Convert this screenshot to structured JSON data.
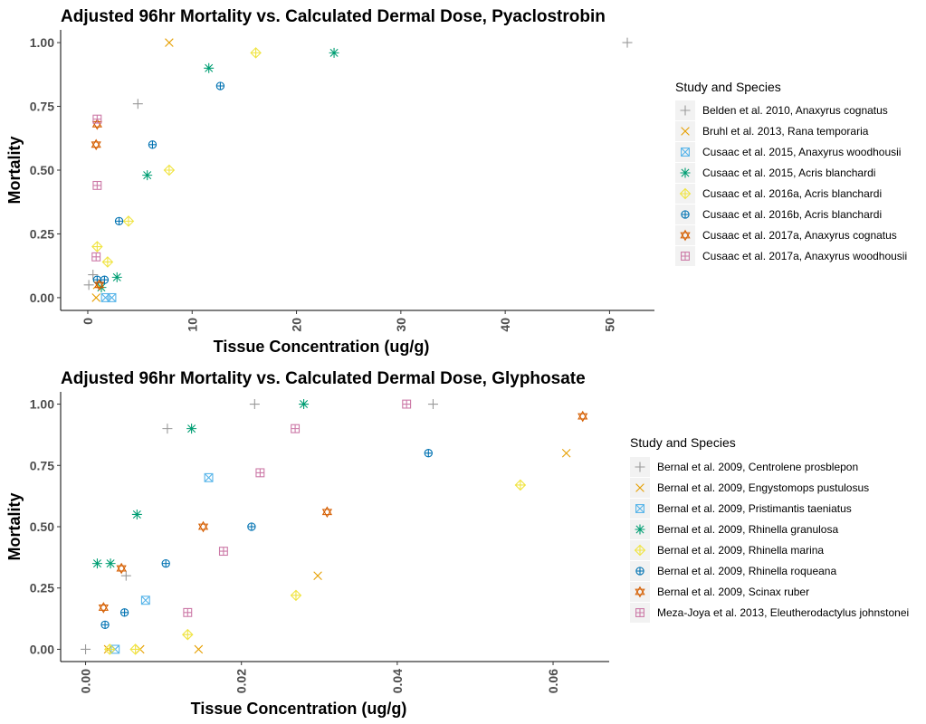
{
  "chart_data": [
    {
      "type": "scatter",
      "title": "Adjusted 96hr Mortality vs. Calculated Dermal Dose, Pyaclostrobin",
      "xlabel": "Tissue Concentration (ug/g)",
      "ylabel": "Mortality",
      "xlim": [
        -2.6,
        54.3
      ],
      "ylim": [
        -0.05,
        1.05
      ],
      "xticks": [
        0,
        10,
        20,
        30,
        40,
        50
      ],
      "xtick_labels": [
        "0",
        "10",
        "20",
        "30",
        "40",
        "50"
      ],
      "yticks": [
        0,
        0.25,
        0.5,
        0.75,
        1.0
      ],
      "ytick_labels": [
        "0.00",
        "0.25",
        "0.50",
        "0.75",
        "1.00"
      ],
      "grid": false,
      "legend": {
        "title": "Study and Species",
        "position": "right"
      },
      "series": [
        {
          "name": "Belden et al. 2010, Anaxyrus cognatus",
          "shape": "plus",
          "color": "#999999",
          "points": [
            [
              0.1,
              0.05
            ],
            [
              0.5,
              0.09
            ],
            [
              4.8,
              0.76
            ],
            [
              51.7,
              1.0
            ]
          ]
        },
        {
          "name": "Bruhl et al. 2013, Rana temporaria",
          "shape": "cross",
          "color": "#E69F00",
          "points": [
            [
              0.8,
              0.0
            ],
            [
              0.9,
              0.05
            ],
            [
              7.8,
              1.0
            ]
          ]
        },
        {
          "name": "Cusaac et al. 2015, Anaxyrus woodhousii",
          "shape": "square-cross",
          "color": "#56B4E9",
          "points": [
            [
              1.7,
              0.0
            ],
            [
              2.3,
              0.0
            ]
          ]
        },
        {
          "name": "Cusaac et al. 2015, Acris blanchardi",
          "shape": "asterisk",
          "color": "#009E73",
          "points": [
            [
              1.3,
              0.04
            ],
            [
              2.8,
              0.08
            ],
            [
              5.7,
              0.48
            ],
            [
              11.6,
              0.9
            ],
            [
              23.6,
              0.96
            ]
          ]
        },
        {
          "name": "Cusaac et al. 2016a, Acris blanchardi",
          "shape": "diamond-plus",
          "color": "#F0E442",
          "points": [
            [
              0.9,
              0.2
            ],
            [
              1.9,
              0.14
            ],
            [
              3.9,
              0.3
            ],
            [
              7.8,
              0.5
            ],
            [
              16.1,
              0.96
            ]
          ]
        },
        {
          "name": "Cusaac et al. 2016b, Acris blanchardi",
          "shape": "circle-plus",
          "color": "#0072B2",
          "points": [
            [
              0.9,
              0.07
            ],
            [
              1.6,
              0.07
            ],
            [
              3.0,
              0.3
            ],
            [
              6.2,
              0.6
            ],
            [
              12.7,
              0.83
            ]
          ]
        },
        {
          "name": "Cusaac et al. 2017a, Anaxyrus cognatus",
          "shape": "hexagram",
          "color": "#D55E00",
          "points": [
            [
              0.8,
              0.6
            ],
            [
              0.9,
              0.68
            ],
            [
              1.1,
              0.05
            ]
          ]
        },
        {
          "name": "Cusaac et al. 2017a, Anaxyrus woodhousii",
          "shape": "square-plus",
          "color": "#CC79A7",
          "points": [
            [
              0.8,
              0.16
            ],
            [
              0.9,
              0.44
            ],
            [
              0.9,
              0.7
            ]
          ]
        }
      ]
    },
    {
      "type": "scatter",
      "title": "Adjusted 96hr Mortality vs. Calculated Dermal Dose, Glyphosate",
      "xlabel": "Tissue Concentration (ug/g)",
      "ylabel": "Mortality",
      "xlim": [
        -0.0032,
        0.0672
      ],
      "ylim": [
        -0.05,
        1.05
      ],
      "xticks": [
        0,
        0.02,
        0.04,
        0.06
      ],
      "xtick_labels": [
        "0.00",
        "0.02",
        "0.04",
        "0.06"
      ],
      "yticks": [
        0,
        0.25,
        0.5,
        0.75,
        1.0
      ],
      "ytick_labels": [
        "0.00",
        "0.25",
        "0.50",
        "0.75",
        "1.00"
      ],
      "grid": false,
      "legend": {
        "title": "Study and Species",
        "position": "right"
      },
      "series": [
        {
          "name": "Bernal et al. 2009, Centrolene prosblepon",
          "shape": "plus",
          "color": "#999999",
          "points": [
            [
              0.0,
              0.0
            ],
            [
              0.0052,
              0.3
            ],
            [
              0.0105,
              0.9
            ],
            [
              0.0217,
              1.0
            ],
            [
              0.0446,
              1.0
            ]
          ]
        },
        {
          "name": "Bernal et al. 2009, Engystomops pustulosus",
          "shape": "cross",
          "color": "#E69F00",
          "points": [
            [
              0.0029,
              0.0
            ],
            [
              0.007,
              0.0
            ],
            [
              0.0145,
              0.0
            ],
            [
              0.0298,
              0.3
            ],
            [
              0.0617,
              0.8
            ]
          ]
        },
        {
          "name": "Bernal et al. 2009, Pristimantis taeniatus",
          "shape": "square-cross",
          "color": "#56B4E9",
          "points": [
            [
              0.0038,
              0.0
            ],
            [
              0.0077,
              0.2
            ],
            [
              0.0158,
              0.7
            ]
          ]
        },
        {
          "name": "Bernal et al. 2009, Rhinella granulosa",
          "shape": "asterisk",
          "color": "#009E73",
          "points": [
            [
              0.0015,
              0.35
            ],
            [
              0.0032,
              0.35
            ],
            [
              0.0066,
              0.55
            ],
            [
              0.0136,
              0.9
            ],
            [
              0.028,
              1.0
            ]
          ]
        },
        {
          "name": "Bernal et al. 2009, Rhinella marina",
          "shape": "diamond-plus",
          "color": "#F0E442",
          "points": [
            [
              0.0031,
              0.0
            ],
            [
              0.0064,
              0.0
            ],
            [
              0.0131,
              0.06
            ],
            [
              0.027,
              0.22
            ],
            [
              0.0558,
              0.67
            ]
          ]
        },
        {
          "name": "Bernal et al. 2009, Rhinella roqueana",
          "shape": "circle-plus",
          "color": "#0072B2",
          "points": [
            [
              0.0025,
              0.1
            ],
            [
              0.005,
              0.15
            ],
            [
              0.0103,
              0.35
            ],
            [
              0.0213,
              0.5
            ],
            [
              0.044,
              0.8
            ]
          ]
        },
        {
          "name": "Bernal et al. 2009, Scinax ruber",
          "shape": "hexagram",
          "color": "#D55E00",
          "points": [
            [
              0.0023,
              0.17
            ],
            [
              0.0046,
              0.33
            ],
            [
              0.0151,
              0.5
            ],
            [
              0.031,
              0.56
            ],
            [
              0.0638,
              0.95
            ]
          ]
        },
        {
          "name": "Meza-Joya et al. 2013, Eleutherodactylus johnstonei",
          "shape": "square-plus",
          "color": "#CC79A7",
          "points": [
            [
              0.0131,
              0.15
            ],
            [
              0.0177,
              0.4
            ],
            [
              0.0224,
              0.72
            ],
            [
              0.0269,
              0.9
            ],
            [
              0.0412,
              1.0
            ]
          ]
        }
      ]
    }
  ]
}
